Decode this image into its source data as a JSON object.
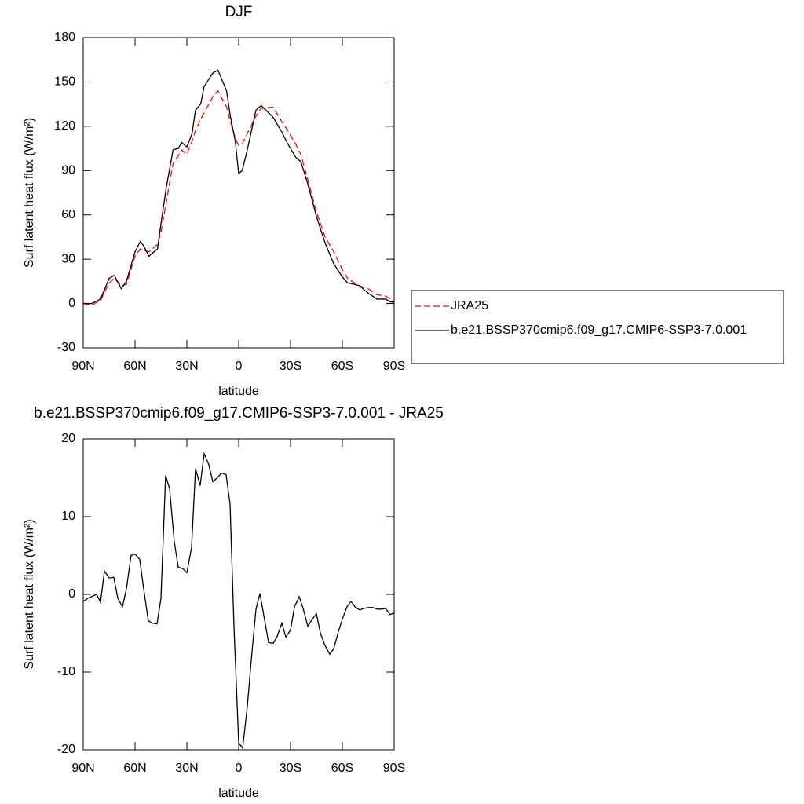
{
  "chart_data": [
    {
      "type": "line",
      "title": "DJF",
      "xlabel": "latitude",
      "ylabel": "Surf latent heat flux (W/m²)",
      "x": [
        90,
        85,
        80,
        75,
        72,
        68,
        65,
        60,
        57,
        55,
        52,
        47,
        45,
        42,
        38,
        35,
        33,
        30,
        27,
        25,
        22,
        20,
        15,
        12,
        7,
        5,
        2,
        0,
        -2,
        -5,
        -10,
        -13,
        -20,
        -25,
        -28,
        -33,
        -36,
        -40,
        -45,
        -50,
        -55,
        -60,
        -63,
        -67,
        -70,
        -75,
        -80,
        -85,
        -88,
        -90
      ],
      "series": [
        {
          "name": "JRA25",
          "color": "#ff0000",
          "line_style": "dashed",
          "values": [
            0,
            -1,
            2,
            14,
            17,
            12,
            13,
            32,
            37,
            36,
            35,
            40,
            48,
            68,
            95,
            100,
            104,
            101,
            110,
            117,
            125,
            129,
            140,
            144,
            133,
            124,
            112,
            107,
            108,
            115,
            127,
            132,
            133,
            123,
            118,
            108,
            101,
            84,
            62,
            45,
            35,
            23,
            17,
            14,
            12,
            10,
            6,
            5,
            3,
            2
          ]
        },
        {
          "name": "b.e21.BSSP370cmip6.f09_g17.CMIP6-SSP3-7.0.001",
          "color": "#000000",
          "line_style": "solid",
          "values": [
            0,
            0,
            3,
            17,
            19,
            10,
            15,
            35,
            42,
            39,
            32,
            37,
            54,
            78,
            104,
            105,
            109,
            106,
            115,
            131,
            135,
            147,
            156,
            158,
            144,
            128,
            110,
            88,
            90,
            104,
            131,
            134,
            126,
            116,
            109,
            99,
            96,
            81,
            59,
            41,
            27,
            18,
            14,
            13,
            12,
            7,
            3,
            3,
            1,
            1
          ]
        }
      ],
      "xlim": [
        90,
        -90
      ],
      "xticks": [
        {
          "value": 90,
          "label": "90N"
        },
        {
          "value": 60,
          "label": "60N"
        },
        {
          "value": 30,
          "label": "30N"
        },
        0,
        {
          "value": -30,
          "label": "30S"
        },
        {
          "value": -60,
          "label": "60S"
        },
        {
          "value": -90,
          "label": "90S"
        }
      ],
      "ylim": [
        -30,
        180
      ],
      "yticks": [
        -30,
        0,
        30,
        60,
        90,
        120,
        150,
        180
      ],
      "legend": "right"
    },
    {
      "type": "line",
      "title": "b.e21.BSSP370cmip6.f09_g17.CMIP6-SSP3-7.0.001 - JRA25",
      "xlabel": "latitude",
      "ylabel": "Surf latent heat flux (W/m²)",
      "x": [
        90,
        87.3,
        82.3,
        80,
        77.7,
        75,
        72.3,
        70,
        67.3,
        65,
        62.3,
        60,
        57.3,
        55,
        52.3,
        50,
        47.3,
        45,
        42.3,
        40,
        37.3,
        35,
        32.3,
        30,
        27.3,
        25,
        22.3,
        20,
        17.3,
        15,
        12.3,
        10,
        7.3,
        5,
        2.7,
        0,
        -2.3,
        -5,
        -7.3,
        -10,
        -12.3,
        -15,
        -17.3,
        -20,
        -22.3,
        -25,
        -27.3,
        -30,
        -32.3,
        -35,
        -37.3,
        -40,
        -42.3,
        -45,
        -47.3,
        -50,
        -52.7,
        -55,
        -57.7,
        -60,
        -62.7,
        -65,
        -67.7,
        -70,
        -72.7,
        -75,
        -77.7,
        -80,
        -82.7,
        -85,
        -87.7,
        -90
      ],
      "values": [
        -0.9,
        -0.5,
        0,
        -1,
        3,
        2.1,
        2.2,
        -0.5,
        -1.6,
        0.7,
        5,
        5.2,
        4.5,
        0.7,
        -3.4,
        -3.7,
        -3.8,
        -0.5,
        15.3,
        13.6,
        6.8,
        3.5,
        3.3,
        2.8,
        6,
        16.2,
        14,
        18.1,
        16.7,
        14.5,
        15,
        15.6,
        15.4,
        11.6,
        -4.3,
        -19.1,
        -19.8,
        -14.4,
        -8.4,
        -1.9,
        0.1,
        -3.3,
        -6.2,
        -6.3,
        -5.4,
        -3.7,
        -5.5,
        -4.6,
        -1.6,
        -0.3,
        -1.8,
        -4.1,
        -3.3,
        -2.5,
        -5,
        -6.6,
        -7.7,
        -7,
        -4.8,
        -3.2,
        -1.6,
        -0.9,
        -1.7,
        -2,
        -1.8,
        -1.7,
        -1.7,
        -1.9,
        -1.9,
        -1.8,
        -2.6,
        -2.4
      ],
      "color": "#000000",
      "xlim": [
        90,
        -90
      ],
      "xticks": [
        {
          "value": 90,
          "label": "90N"
        },
        {
          "value": 60,
          "label": "60N"
        },
        {
          "value": 30,
          "label": "30N"
        },
        0,
        {
          "value": -30,
          "label": "30S"
        },
        {
          "value": -60,
          "label": "60S"
        },
        {
          "value": -90,
          "label": "90S"
        }
      ],
      "ylim": [
        -20,
        20
      ],
      "yticks": [
        -20,
        -10,
        0,
        10,
        20
      ]
    }
  ]
}
